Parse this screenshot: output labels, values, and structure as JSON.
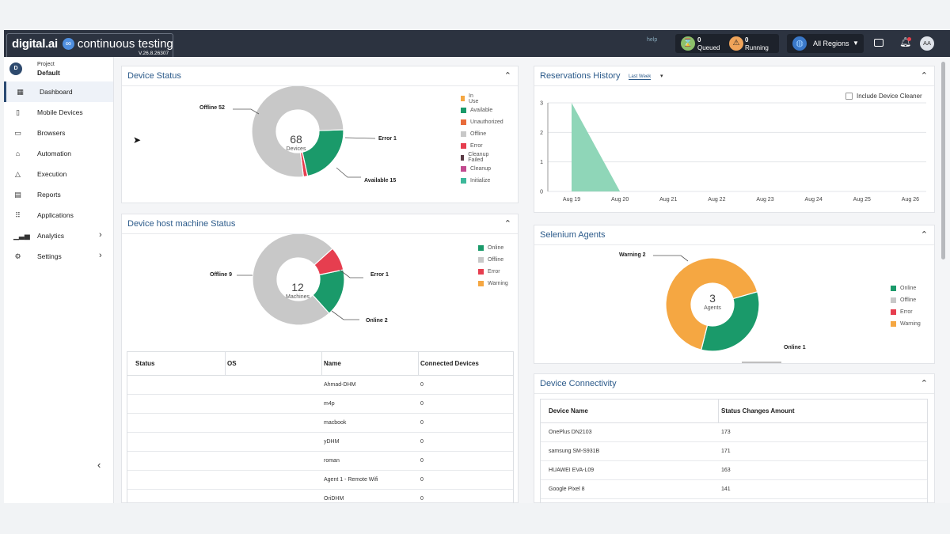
{
  "topbar": {
    "brand_main": "digital.ai",
    "brand_icon": "∞",
    "brand_sub": "continuous testing",
    "version": "V.26.8.26307",
    "help_alt": "help",
    "queued": {
      "count": "0",
      "label": "Queued"
    },
    "running": {
      "count": "0",
      "label": "Running"
    },
    "region": "All Regions",
    "avatar": "AA"
  },
  "sidebar": {
    "project_caption": "Project",
    "project_name": "Default",
    "project_initial": "D",
    "items": [
      {
        "label": "Dashboard",
        "icon": "dashboard-icon"
      },
      {
        "label": "Mobile Devices",
        "icon": "mobile-icon"
      },
      {
        "label": "Browsers",
        "icon": "browser-icon"
      },
      {
        "label": "Automation",
        "icon": "automation-icon"
      },
      {
        "label": "Execution",
        "icon": "execution-icon"
      },
      {
        "label": "Reports",
        "icon": "reports-icon"
      },
      {
        "label": "Applications",
        "icon": "apps-icon"
      },
      {
        "label": "Analytics",
        "icon": "analytics-icon"
      },
      {
        "label": "Settings",
        "icon": "settings-icon"
      }
    ]
  },
  "device_status": {
    "title": "Device Status",
    "total": "68",
    "total_label": "Devices",
    "callouts": {
      "offline": "Offline 52",
      "error": "Error 1",
      "available": "Available 15"
    },
    "slices": [
      {
        "name": "Available",
        "value": 15,
        "color": "#1a9a6a"
      },
      {
        "name": "Error",
        "value": 1,
        "color": "#e63e4f"
      },
      {
        "name": "Offline",
        "value": 52,
        "color": "#c8c8c8"
      }
    ],
    "legend": [
      {
        "label": "In Use",
        "color": "#f5a742"
      },
      {
        "label": "Available",
        "color": "#1a9a6a"
      },
      {
        "label": "Unauthorized",
        "color": "#e86b3a"
      },
      {
        "label": "Offline",
        "color": "#c8c8c8"
      },
      {
        "label": "Error",
        "color": "#e63e4f"
      },
      {
        "label": "Cleanup Failed",
        "color": "#5a3a44"
      },
      {
        "label": "Cleanup",
        "color": "#c24a8f"
      },
      {
        "label": "Initialize",
        "color": "#3cb89a"
      }
    ]
  },
  "host_status": {
    "title": "Device host machine Status",
    "total": "12",
    "total_label": "Machines",
    "callouts": {
      "offline": "Offline 9",
      "error": "Error 1",
      "online": "Online 2"
    },
    "slices": [
      {
        "name": "Online",
        "value": 2,
        "color": "#1a9a6a"
      },
      {
        "name": "Offline",
        "value": 9,
        "color": "#c8c8c8"
      },
      {
        "name": "Error",
        "value": 1,
        "color": "#e63e4f"
      }
    ],
    "legend": [
      {
        "label": "Online",
        "color": "#1a9a6a"
      },
      {
        "label": "Offline",
        "color": "#c8c8c8"
      },
      {
        "label": "Error",
        "color": "#e63e4f"
      },
      {
        "label": "Warning",
        "color": "#f5a742"
      }
    ],
    "table": {
      "headers": [
        "Status",
        "OS",
        "Name",
        "Connected Devices"
      ],
      "rows": [
        {
          "name": "Ahmad-DHM",
          "count": "0"
        },
        {
          "name": "m4p",
          "count": "0"
        },
        {
          "name": "macbook",
          "count": "0"
        },
        {
          "name": "yDHM",
          "count": "0"
        },
        {
          "name": "roman",
          "count": "0"
        },
        {
          "name": "Agent 1 - Remote Wifi",
          "count": "0"
        },
        {
          "name": "OriDHM",
          "count": "0"
        }
      ],
      "os_icon": ""
    }
  },
  "reservations": {
    "title": "Reservations History",
    "range": "Last Week",
    "checkbox_label": "Include Device Cleaner",
    "include_cleaner": false
  },
  "chart_data": {
    "type": "area",
    "categories": [
      "Aug 19",
      "Aug 20",
      "Aug 21",
      "Aug 22",
      "Aug 23",
      "Aug 24",
      "Aug 25",
      "Aug 26"
    ],
    "series": [
      {
        "values": [
          3,
          0,
          0,
          0,
          0,
          0,
          0,
          0
        ]
      }
    ],
    "yticks": [
      "0",
      "1",
      "2",
      "3"
    ],
    "ylim": [
      0,
      3
    ],
    "grid": true,
    "color": "#8fd6b8"
  },
  "selenium": {
    "title": "Selenium Agents",
    "total": "3",
    "total_label": "Agents",
    "callouts": {
      "warning": "Warning 2",
      "online": "Online 1"
    },
    "slices": [
      {
        "name": "Online",
        "value": 1,
        "color": "#1a9a6a"
      },
      {
        "name": "Warning",
        "value": 2,
        "color": "#f5a742"
      }
    ],
    "legend": [
      {
        "label": "Online",
        "color": "#1a9a6a"
      },
      {
        "label": "Offline",
        "color": "#c8c8c8"
      },
      {
        "label": "Error",
        "color": "#e63e4f"
      },
      {
        "label": "Warning",
        "color": "#f5a742"
      }
    ]
  },
  "connectivity": {
    "title": "Device Connectivity",
    "headers": [
      "Device Name",
      "Status Changes Amount"
    ],
    "rows": [
      {
        "name": "OnePlus DN2103",
        "amount": "173"
      },
      {
        "name": "samsung SM-S931B",
        "amount": "171"
      },
      {
        "name": "HUAWEI EVA-L09",
        "amount": "163"
      },
      {
        "name": "Google Pixel 8",
        "amount": "141"
      }
    ]
  }
}
